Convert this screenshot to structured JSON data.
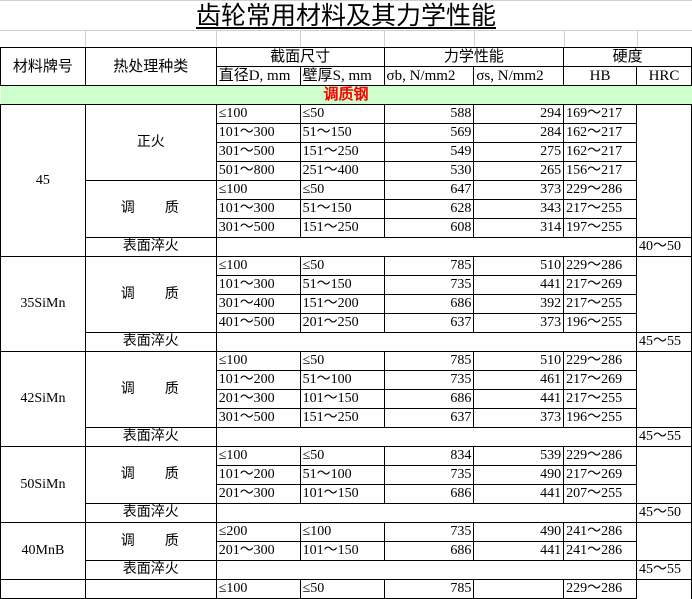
{
  "title": "齿轮常用材料及其力学性能",
  "headers": {
    "material": "材料牌号",
    "heat_treatment": "热处理种类",
    "section_size": "截面尺寸",
    "diameter": "直径D, mm",
    "thickness": "壁厚S, mm",
    "mechanical": "力学性能",
    "sigma_b": "σb, N/mm2",
    "sigma_s": "σs, N/mm2",
    "hardness": "硬度",
    "hb": "HB",
    "hrc": "HRC"
  },
  "section_label": "调质钢",
  "materials": [
    {
      "name": "45",
      "groups": [
        {
          "treatment": "正火",
          "rows": [
            [
              "≤100",
              "≤50",
              "588",
              "294",
              "169～217"
            ],
            [
              "101～300",
              "51～150",
              "569",
              "284",
              "162～217"
            ],
            [
              "301～500",
              "151～250",
              "549",
              "275",
              "162～217"
            ],
            [
              "501～800",
              "251～400",
              "530",
              "265",
              "156～217"
            ]
          ]
        },
        {
          "treatment": "调质",
          "rows": [
            [
              "≤100",
              "≤50",
              "647",
              "373",
              "229～286"
            ],
            [
              "101～300",
              "51～150",
              "628",
              "343",
              "217～255"
            ],
            [
              "301～500",
              "151～250",
              "608",
              "314",
              "197～255"
            ]
          ]
        }
      ],
      "surface": {
        "label": "表面淬火",
        "hrc": "40～50"
      }
    },
    {
      "name": "35SiMn",
      "groups": [
        {
          "treatment": "调质",
          "rows": [
            [
              "≤100",
              "≤50",
              "785",
              "510",
              "229～286"
            ],
            [
              "101～300",
              "51～150",
              "735",
              "441",
              "217～269"
            ],
            [
              "301～400",
              "151～200",
              "686",
              "392",
              "217～255"
            ],
            [
              "401～500",
              "201～250",
              "637",
              "373",
              "196～255"
            ]
          ]
        }
      ],
      "surface": {
        "label": "表面淬火",
        "hrc": "45～55"
      }
    },
    {
      "name": "42SiMn",
      "groups": [
        {
          "treatment": "调质",
          "rows": [
            [
              "≤100",
              "≤50",
              "785",
              "510",
              "229～286"
            ],
            [
              "101～200",
              "51～100",
              "735",
              "461",
              "217～269"
            ],
            [
              "201～300",
              "101～150",
              "686",
              "441",
              "217～255"
            ],
            [
              "301～500",
              "151～250",
              "637",
              "373",
              "196～255"
            ]
          ]
        }
      ],
      "surface": {
        "label": "表面淬火",
        "hrc": "45～55"
      }
    },
    {
      "name": "50SiMn",
      "groups": [
        {
          "treatment": "调质",
          "rows": [
            [
              "≤100",
              "≤50",
              "834",
              "539",
              "229～286"
            ],
            [
              "101～200",
              "51～100",
              "735",
              "490",
              "217～269"
            ],
            [
              "201～300",
              "101～150",
              "686",
              "441",
              "207～255"
            ]
          ]
        }
      ],
      "surface": {
        "label": "表面淬火",
        "hrc": "45～50"
      }
    },
    {
      "name": "40MnB",
      "groups": [
        {
          "treatment": "调质",
          "rows": [
            [
              "≤200",
              "≤100",
              "735",
              "490",
              "241～286"
            ],
            [
              "201～300",
              "101～150",
              "686",
              "441",
              "241～286"
            ]
          ]
        }
      ],
      "surface": {
        "label": "表面淬火",
        "hrc": "45～55"
      }
    },
    {
      "name": "",
      "groups": [
        {
          "treatment": "",
          "rows": [
            [
              "≤100",
              "≤50",
              "785",
              "",
              "229～286"
            ]
          ]
        }
      ]
    }
  ]
}
